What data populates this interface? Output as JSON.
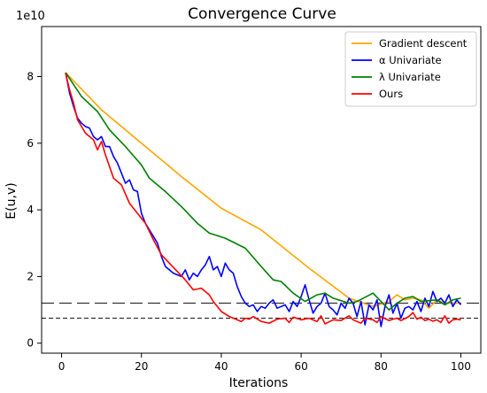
{
  "chart_data": {
    "type": "line",
    "title": "Convergence Curve",
    "xlabel": "Iterations",
    "ylabel": "E(u,v)",
    "y_scale_label": "1e10",
    "xlim": [
      -5,
      105
    ],
    "ylim": [
      -0.3,
      9.5
    ],
    "x_ticks": [
      0,
      20,
      40,
      60,
      80,
      100
    ],
    "y_ticks": [
      0,
      2,
      4,
      6,
      8
    ],
    "grid": false,
    "legend_position": "top-right",
    "reference_lines": [
      {
        "y": 1.2,
        "style": "long-dash",
        "color": "#333333"
      },
      {
        "y": 0.75,
        "style": "short-dash",
        "color": "#333333"
      }
    ],
    "series": [
      {
        "name": "Gradient descent",
        "color": "#ffa500",
        "points": [
          [
            1,
            8.12
          ],
          [
            10,
            7.0
          ],
          [
            20,
            6.0
          ],
          [
            30,
            5.0
          ],
          [
            40,
            4.05
          ],
          [
            50,
            3.4
          ],
          [
            62,
            2.25
          ],
          [
            72,
            1.35
          ],
          [
            78,
            1.1
          ],
          [
            82,
            1.25
          ],
          [
            84,
            1.45
          ],
          [
            86,
            1.3
          ],
          [
            88,
            1.35
          ],
          [
            90,
            1.3
          ],
          [
            92,
            1.05
          ],
          [
            94,
            1.3
          ],
          [
            96,
            1.2
          ],
          [
            98,
            1.2
          ],
          [
            100,
            1.2
          ]
        ]
      },
      {
        "name": "α Univariate",
        "color": "#0000ff",
        "points": [
          [
            1,
            8.12
          ],
          [
            2,
            7.5
          ],
          [
            3,
            7.1
          ],
          [
            4,
            6.75
          ],
          [
            5,
            6.6
          ],
          [
            6,
            6.5
          ],
          [
            7,
            6.45
          ],
          [
            8,
            6.2
          ],
          [
            9,
            6.1
          ],
          [
            10,
            6.2
          ],
          [
            11,
            5.9
          ],
          [
            12,
            5.9
          ],
          [
            13,
            5.6
          ],
          [
            14,
            5.4
          ],
          [
            15,
            5.1
          ],
          [
            16,
            4.8
          ],
          [
            17,
            4.9
          ],
          [
            18,
            4.6
          ],
          [
            19,
            4.55
          ],
          [
            20,
            3.9
          ],
          [
            21,
            3.6
          ],
          [
            22,
            3.4
          ],
          [
            23,
            3.2
          ],
          [
            24,
            3.0
          ],
          [
            25,
            2.6
          ],
          [
            26,
            2.3
          ],
          [
            27,
            2.2
          ],
          [
            28,
            2.1
          ],
          [
            29,
            2.05
          ],
          [
            30,
            2.0
          ],
          [
            31,
            2.2
          ],
          [
            32,
            1.9
          ],
          [
            33,
            2.1
          ],
          [
            34,
            2.0
          ],
          [
            35,
            2.2
          ],
          [
            36,
            2.35
          ],
          [
            37,
            2.6
          ],
          [
            38,
            2.2
          ],
          [
            39,
            2.3
          ],
          [
            40,
            2.0
          ],
          [
            41,
            2.4
          ],
          [
            42,
            2.2
          ],
          [
            43,
            2.1
          ],
          [
            44,
            1.7
          ],
          [
            45,
            1.4
          ],
          [
            46,
            1.2
          ],
          [
            47,
            1.1
          ],
          [
            48,
            1.15
          ],
          [
            49,
            0.95
          ],
          [
            50,
            1.1
          ],
          [
            51,
            1.05
          ],
          [
            52,
            1.2
          ],
          [
            53,
            1.3
          ],
          [
            54,
            1.05
          ],
          [
            55,
            1.1
          ],
          [
            56,
            1.15
          ],
          [
            57,
            0.95
          ],
          [
            58,
            1.25
          ],
          [
            59,
            1.1
          ],
          [
            60,
            1.4
          ],
          [
            61,
            1.75
          ],
          [
            62,
            1.3
          ],
          [
            63,
            0.9
          ],
          [
            64,
            1.1
          ],
          [
            65,
            1.2
          ],
          [
            66,
            1.5
          ],
          [
            67,
            1.1
          ],
          [
            68,
            1.0
          ],
          [
            69,
            0.85
          ],
          [
            70,
            1.2
          ],
          [
            71,
            1.05
          ],
          [
            72,
            1.35
          ],
          [
            73,
            1.2
          ],
          [
            74,
            0.8
          ],
          [
            75,
            1.25
          ],
          [
            76,
            0.55
          ],
          [
            77,
            1.15
          ],
          [
            78,
            1.0
          ],
          [
            79,
            1.3
          ],
          [
            80,
            0.5
          ],
          [
            81,
            1.1
          ],
          [
            82,
            1.45
          ],
          [
            83,
            0.9
          ],
          [
            84,
            1.2
          ],
          [
            85,
            0.75
          ],
          [
            86,
            1.05
          ],
          [
            87,
            1.1
          ],
          [
            88,
            1.0
          ],
          [
            89,
            1.25
          ],
          [
            90,
            0.95
          ],
          [
            91,
            1.35
          ],
          [
            92,
            1.1
          ],
          [
            93,
            1.55
          ],
          [
            94,
            1.25
          ],
          [
            95,
            1.35
          ],
          [
            96,
            1.2
          ],
          [
            97,
            1.45
          ],
          [
            98,
            1.1
          ],
          [
            99,
            1.3
          ],
          [
            100,
            1.15
          ]
        ]
      },
      {
        "name": "λ Univariate",
        "color": "#008000",
        "points": [
          [
            1,
            8.12
          ],
          [
            5,
            7.4
          ],
          [
            9,
            6.95
          ],
          [
            12,
            6.4
          ],
          [
            16,
            5.9
          ],
          [
            20,
            5.35
          ],
          [
            22,
            4.95
          ],
          [
            26,
            4.55
          ],
          [
            30,
            4.1
          ],
          [
            34,
            3.6
          ],
          [
            37,
            3.3
          ],
          [
            41,
            3.15
          ],
          [
            46,
            2.85
          ],
          [
            50,
            2.3
          ],
          [
            53,
            1.9
          ],
          [
            55,
            1.85
          ],
          [
            58,
            1.5
          ],
          [
            61,
            1.25
          ],
          [
            64,
            1.45
          ],
          [
            66,
            1.5
          ],
          [
            68,
            1.35
          ],
          [
            72,
            1.2
          ],
          [
            74,
            1.25
          ],
          [
            78,
            1.5
          ],
          [
            80,
            1.25
          ],
          [
            82,
            1.0
          ],
          [
            84,
            1.2
          ],
          [
            86,
            1.35
          ],
          [
            88,
            1.4
          ],
          [
            90,
            1.25
          ],
          [
            94,
            1.3
          ],
          [
            96,
            1.15
          ],
          [
            98,
            1.3
          ],
          [
            100,
            1.35
          ]
        ]
      },
      {
        "name": "Ours",
        "color": "#ff0000",
        "points": [
          [
            1,
            8.1
          ],
          [
            2,
            7.6
          ],
          [
            3,
            7.2
          ],
          [
            4,
            6.7
          ],
          [
            6,
            6.3
          ],
          [
            8,
            6.1
          ],
          [
            9,
            5.8
          ],
          [
            10,
            6.05
          ],
          [
            11,
            5.65
          ],
          [
            12,
            5.3
          ],
          [
            13,
            4.95
          ],
          [
            15,
            4.75
          ],
          [
            17,
            4.2
          ],
          [
            19,
            3.9
          ],
          [
            21,
            3.6
          ],
          [
            23,
            3.1
          ],
          [
            25,
            2.65
          ],
          [
            27,
            2.4
          ],
          [
            29,
            2.15
          ],
          [
            31,
            1.9
          ],
          [
            33,
            1.6
          ],
          [
            35,
            1.65
          ],
          [
            37,
            1.45
          ],
          [
            38,
            1.25
          ],
          [
            39,
            1.1
          ],
          [
            40,
            0.95
          ],
          [
            42,
            0.8
          ],
          [
            44,
            0.7
          ],
          [
            45,
            0.65
          ],
          [
            46,
            0.75
          ],
          [
            47,
            0.72
          ],
          [
            48,
            0.8
          ],
          [
            50,
            0.65
          ],
          [
            52,
            0.6
          ],
          [
            54,
            0.72
          ],
          [
            56,
            0.75
          ],
          [
            57,
            0.62
          ],
          [
            58,
            0.78
          ],
          [
            60,
            0.7
          ],
          [
            62,
            0.75
          ],
          [
            64,
            0.65
          ],
          [
            65,
            0.82
          ],
          [
            66,
            0.58
          ],
          [
            68,
            0.7
          ],
          [
            70,
            0.68
          ],
          [
            72,
            0.82
          ],
          [
            73,
            0.7
          ],
          [
            75,
            0.6
          ],
          [
            76,
            0.75
          ],
          [
            78,
            0.7
          ],
          [
            79,
            0.62
          ],
          [
            80,
            0.8
          ],
          [
            82,
            0.68
          ],
          [
            83,
            0.72
          ],
          [
            84,
            0.75
          ],
          [
            85,
            0.68
          ],
          [
            87,
            0.8
          ],
          [
            88,
            0.92
          ],
          [
            89,
            0.72
          ],
          [
            90,
            0.78
          ],
          [
            91,
            0.68
          ],
          [
            92,
            0.72
          ],
          [
            93,
            0.66
          ],
          [
            94,
            0.7
          ],
          [
            95,
            0.62
          ],
          [
            96,
            0.82
          ],
          [
            97,
            0.6
          ],
          [
            98,
            0.7
          ],
          [
            99,
            0.72
          ],
          [
            100,
            0.7
          ]
        ]
      }
    ]
  }
}
